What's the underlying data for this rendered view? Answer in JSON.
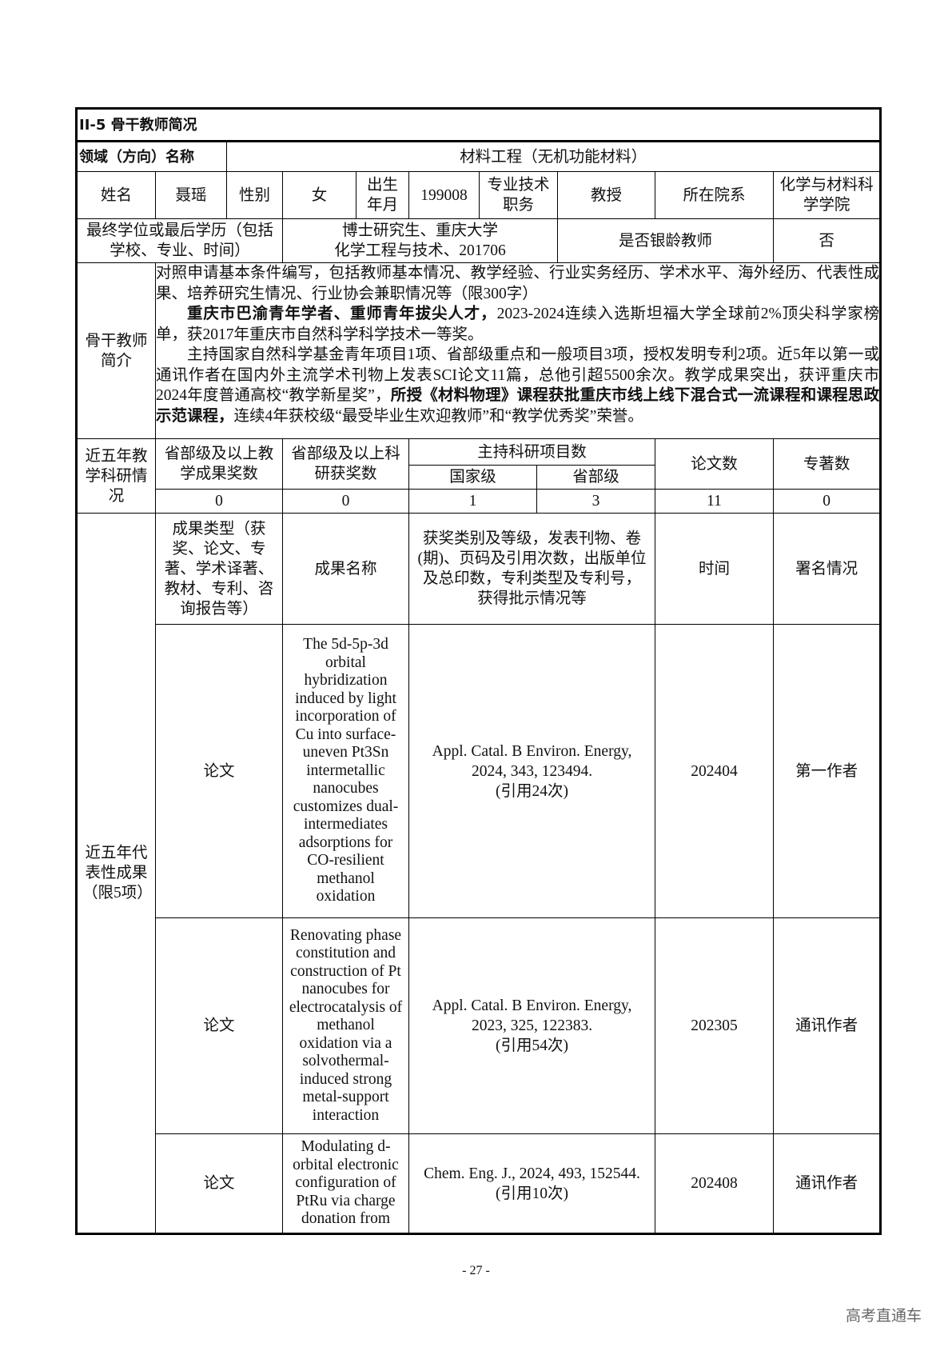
{
  "section_title": "II-5  骨干教师简况",
  "domain": {
    "label": "领域（方向）名称",
    "value": "材料工程（无机功能材料）"
  },
  "basic": {
    "name_label": "姓名",
    "name": "聂瑶",
    "gender_label": "性别",
    "gender": "女",
    "birth_label": "出生年月",
    "birth": "199008",
    "title_label": "专业技术职务",
    "title": "教授",
    "dept_label": "所在院系",
    "dept": "化学与材料科学学院"
  },
  "degree": {
    "label": "最终学位或最后学历（包括学校、专业、时间）",
    "value_line1": "博士研究生、重庆大学",
    "value_line2": "化学工程与技术、201706",
    "silver_label": "是否银龄教师",
    "silver_value": "否"
  },
  "intro": {
    "label": "骨干教师简介",
    "p1": "对照申请基本条件编写，包括教师基本情况、教学经验、行业实务经历、学术水平、海外经历、代表性成果、培养研究生情况、行业协会兼职情况等（限300字）",
    "p2_bold": "重庆市巴渝青年学者、重师青年拔尖人才，",
    "p2_rest": "2023-2024连续入选斯坦福大学全球前2%顶尖科学家榜单，获2017年重庆市自然科学科学技术一等奖。",
    "p3_a": "主持国家自然科学基金青年项目1项、省部级重点和一般项目3项，授权发明专利2项。近5年以第一或通讯作者在国内外主流学术刊物上发表SCI论文11篇，总他引超5500余次。教学成果突出，获评重庆市2024年度普通高校“教学新星奖”，",
    "p3_bold": "所授《材料物理》课程获批重庆市线上线下混合式一流课程和课程思政示范课程，",
    "p3_c": "连续4年获校级“最受毕业生欢迎教师”和“教学优秀奖”荣誉。"
  },
  "stats": {
    "label": "近五年教学科研情况",
    "teaching_awards_label": "省部级及以上教学成果奖数",
    "research_awards_label": "省部级及以上科研获奖数",
    "projects_label": "主持科研项目数",
    "national_label": "国家级",
    "provincial_label": "省部级",
    "papers_label": "论文数",
    "books_label": "专著数",
    "teaching_awards": "0",
    "research_awards": "0",
    "national": "1",
    "provincial": "3",
    "papers": "11",
    "books": "0"
  },
  "results": {
    "label": "近五年代表性成果（限5项）",
    "headers": {
      "type": "成果类型（获奖、论文、专著、学术译著、教材、专利、咨询报告等）",
      "name": "成果名称",
      "detail": "获奖类别及等级，发表刊物、卷(期)、页码及引用次数，出版单位及总印数，专利类型及专利号，获得批示情况等",
      "time": "时间",
      "sign": "署名情况"
    },
    "rows": [
      {
        "type": "论文",
        "name": "The 5d-5p-3d orbital hybridization induced by light incorporation of Cu into surface-uneven Pt3Sn intermetallic nanocubes customizes dual-intermediates adsorptions for CO-resilient methanol oxidation",
        "detail_line1": "Appl. Catal. B Environ. Energy,",
        "detail_line2": "2024, 343, 123494.",
        "detail_line3": "(引用24次)",
        "time": "202404",
        "sign": "第一作者"
      },
      {
        "type": "论文",
        "name": "Renovating phase constitution and construction of Pt nanocubes for electrocatalysis of methanol oxidation via a solvothermal-induced strong metal-support interaction",
        "detail_line1": "Appl. Catal. B Environ. Energy,",
        "detail_line2": "2023, 325, 122383.",
        "detail_line3": "(引用54次)",
        "time": "202305",
        "sign": "通讯作者"
      },
      {
        "type": "论文",
        "name": "Modulating d-orbital electronic configuration of PtRu via charge donation from",
        "detail_line1": "Chem. Eng. J., 2024, 493, 152544.",
        "detail_line2": "",
        "detail_line3": "(引用10次)",
        "time": "202408",
        "sign": "通讯作者"
      }
    ]
  },
  "page_number": "- 27 -",
  "watermark": "高考直通车"
}
